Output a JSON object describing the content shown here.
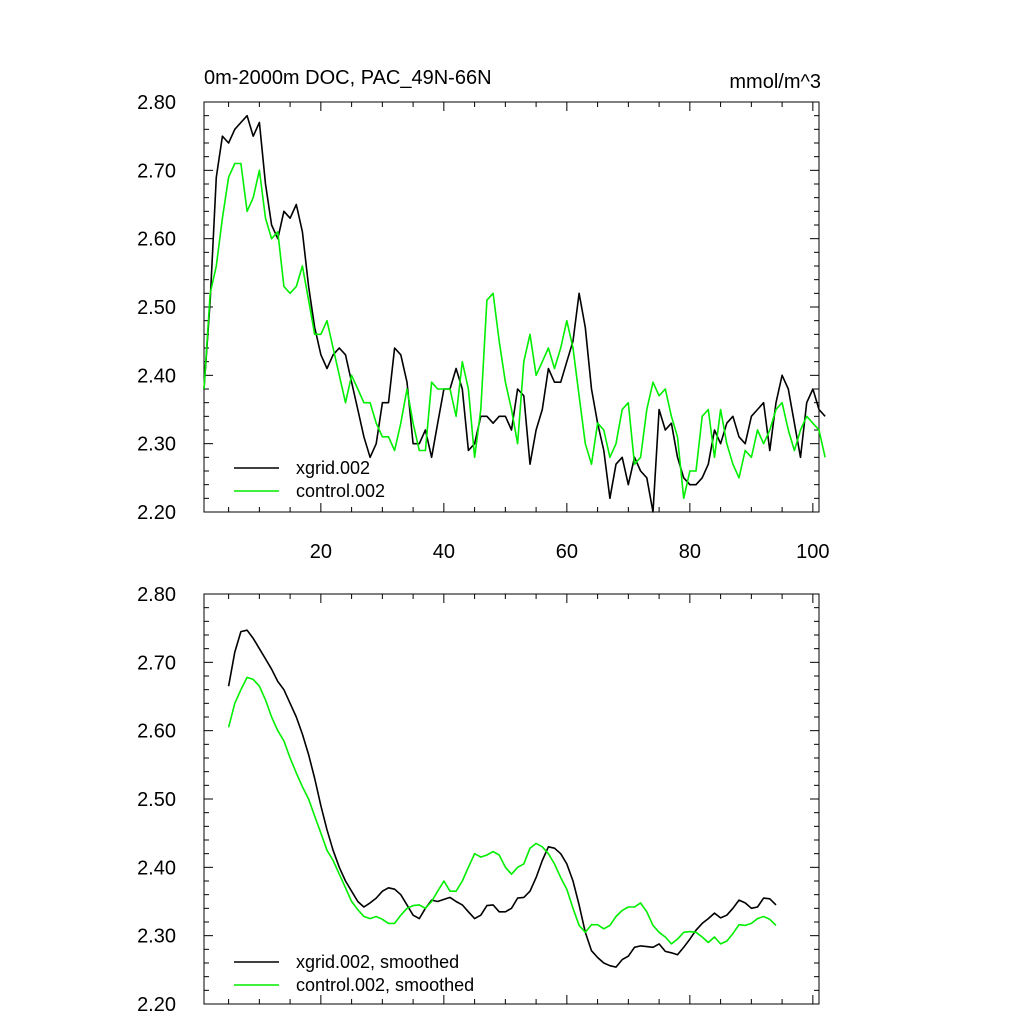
{
  "colors": {
    "xgrid": "#000000",
    "control": "#00ee00",
    "axis": "#000000",
    "background": "#ffffff"
  },
  "chart_data": [
    {
      "type": "line",
      "title_left": "0m-2000m DOC, PAC_49N-66N",
      "title_right": "mmol/m^3",
      "xlim": [
        1,
        101
      ],
      "ylim": [
        2.2,
        2.8
      ],
      "yticks": [
        "2.20",
        "2.30",
        "2.40",
        "2.50",
        "2.60",
        "2.70",
        "2.80"
      ],
      "xticks": [
        "20",
        "40",
        "60",
        "80",
        "100"
      ],
      "legend": [
        "xgrid.002",
        "control.002"
      ],
      "legend_placement": "bottom-left",
      "series": [
        {
          "name": "xgrid.002",
          "color": "#000000",
          "x_start": 1,
          "values": [
            2.38,
            2.51,
            2.69,
            2.75,
            2.74,
            2.76,
            2.77,
            2.78,
            2.75,
            2.77,
            2.68,
            2.62,
            2.6,
            2.64,
            2.63,
            2.65,
            2.61,
            2.53,
            2.47,
            2.43,
            2.41,
            2.43,
            2.44,
            2.43,
            2.39,
            2.35,
            2.31,
            2.28,
            2.3,
            2.36,
            2.36,
            2.44,
            2.43,
            2.39,
            2.3,
            2.3,
            2.32,
            2.28,
            2.33,
            2.38,
            2.38,
            2.41,
            2.38,
            2.29,
            2.3,
            2.34,
            2.34,
            2.33,
            2.34,
            2.34,
            2.32,
            2.38,
            2.37,
            2.27,
            2.32,
            2.35,
            2.41,
            2.39,
            2.39,
            2.42,
            2.45,
            2.52,
            2.47,
            2.38,
            2.33,
            2.29,
            2.22,
            2.27,
            2.28,
            2.24,
            2.28,
            2.26,
            2.25,
            2.2,
            2.35,
            2.32,
            2.33,
            2.28,
            2.25,
            2.24,
            2.24,
            2.25,
            2.27,
            2.32,
            2.3,
            2.33,
            2.34,
            2.31,
            2.3,
            2.34,
            2.35,
            2.36,
            2.29,
            2.36,
            2.4,
            2.38,
            2.33,
            2.28,
            2.36,
            2.38,
            2.35,
            2.34
          ]
        },
        {
          "name": "control.002",
          "color": "#00ee00",
          "x_start": 1,
          "values": [
            2.38,
            2.52,
            2.56,
            2.63,
            2.69,
            2.71,
            2.71,
            2.64,
            2.66,
            2.7,
            2.63,
            2.6,
            2.61,
            2.53,
            2.52,
            2.53,
            2.56,
            2.51,
            2.46,
            2.46,
            2.48,
            2.44,
            2.4,
            2.36,
            2.4,
            2.38,
            2.36,
            2.36,
            2.33,
            2.31,
            2.31,
            2.29,
            2.33,
            2.38,
            2.33,
            2.29,
            2.29,
            2.39,
            2.38,
            2.38,
            2.38,
            2.34,
            2.42,
            2.38,
            2.28,
            2.35,
            2.51,
            2.52,
            2.45,
            2.39,
            2.35,
            2.3,
            2.42,
            2.46,
            2.4,
            2.42,
            2.44,
            2.41,
            2.44,
            2.48,
            2.44,
            2.37,
            2.3,
            2.27,
            2.33,
            2.32,
            2.28,
            2.3,
            2.35,
            2.36,
            2.27,
            2.28,
            2.35,
            2.39,
            2.37,
            2.38,
            2.34,
            2.31,
            2.22,
            2.26,
            2.26,
            2.34,
            2.35,
            2.28,
            2.35,
            2.3,
            2.27,
            2.25,
            2.29,
            2.28,
            2.32,
            2.3,
            2.32,
            2.35,
            2.36,
            2.32,
            2.29,
            2.32,
            2.34,
            2.33,
            2.32,
            2.28
          ]
        }
      ]
    },
    {
      "type": "line",
      "xlim": [
        1,
        101
      ],
      "ylim": [
        2.2,
        2.8
      ],
      "yticks": [
        "2.20",
        "2.30",
        "2.40",
        "2.50",
        "2.60",
        "2.70",
        "2.80"
      ],
      "xticks": [],
      "legend": [
        "xgrid.002, smoothed",
        "control.002, smoothed"
      ],
      "legend_placement": "bottom-left",
      "series": [
        {
          "name": "xgrid.002, smoothed",
          "color": "#000000",
          "x_start": 5,
          "values": [
            2.665,
            2.715,
            2.745,
            2.747,
            2.735,
            2.72,
            2.705,
            2.69,
            2.672,
            2.66,
            2.64,
            2.62,
            2.595,
            2.565,
            2.53,
            2.49,
            2.455,
            2.425,
            2.4,
            2.38,
            2.365,
            2.35,
            2.342,
            2.348,
            2.355,
            2.365,
            2.37,
            2.368,
            2.36,
            2.345,
            2.33,
            2.325,
            2.34,
            2.352,
            2.35,
            2.353,
            2.356,
            2.35,
            2.345,
            2.335,
            2.325,
            2.33,
            2.344,
            2.345,
            2.335,
            2.335,
            2.34,
            2.355,
            2.356,
            2.365,
            2.385,
            2.41,
            2.43,
            2.428,
            2.42,
            2.405,
            2.38,
            2.345,
            2.305,
            2.278,
            2.268,
            2.26,
            2.256,
            2.254,
            2.265,
            2.27,
            2.283,
            2.285,
            2.284,
            2.283,
            2.288,
            2.277,
            2.275,
            2.272,
            2.283,
            2.295,
            2.308,
            2.318,
            2.325,
            2.333,
            2.326,
            2.33,
            2.34,
            2.352,
            2.348,
            2.34,
            2.342,
            2.355,
            2.354,
            2.345
          ]
        },
        {
          "name": "control.002, smoothed",
          "color": "#00ee00",
          "x_start": 5,
          "values": [
            2.605,
            2.64,
            2.66,
            2.678,
            2.675,
            2.665,
            2.645,
            2.62,
            2.6,
            2.585,
            2.56,
            2.538,
            2.518,
            2.5,
            2.475,
            2.45,
            2.425,
            2.41,
            2.39,
            2.37,
            2.35,
            2.338,
            2.328,
            2.325,
            2.328,
            2.324,
            2.318,
            2.318,
            2.33,
            2.34,
            2.344,
            2.345,
            2.34,
            2.35,
            2.365,
            2.38,
            2.365,
            2.365,
            2.38,
            2.4,
            2.42,
            2.415,
            2.418,
            2.423,
            2.418,
            2.4,
            2.39,
            2.4,
            2.405,
            2.428,
            2.435,
            2.43,
            2.42,
            2.405,
            2.385,
            2.368,
            2.34,
            2.315,
            2.305,
            2.316,
            2.316,
            2.31,
            2.315,
            2.328,
            2.337,
            2.342,
            2.342,
            2.348,
            2.335,
            2.315,
            2.305,
            2.298,
            2.288,
            2.295,
            2.305,
            2.306,
            2.305,
            2.298,
            2.29,
            2.298,
            2.288,
            2.292,
            2.303,
            2.316,
            2.315,
            2.318,
            2.325,
            2.328,
            2.324,
            2.315
          ]
        }
      ]
    }
  ]
}
